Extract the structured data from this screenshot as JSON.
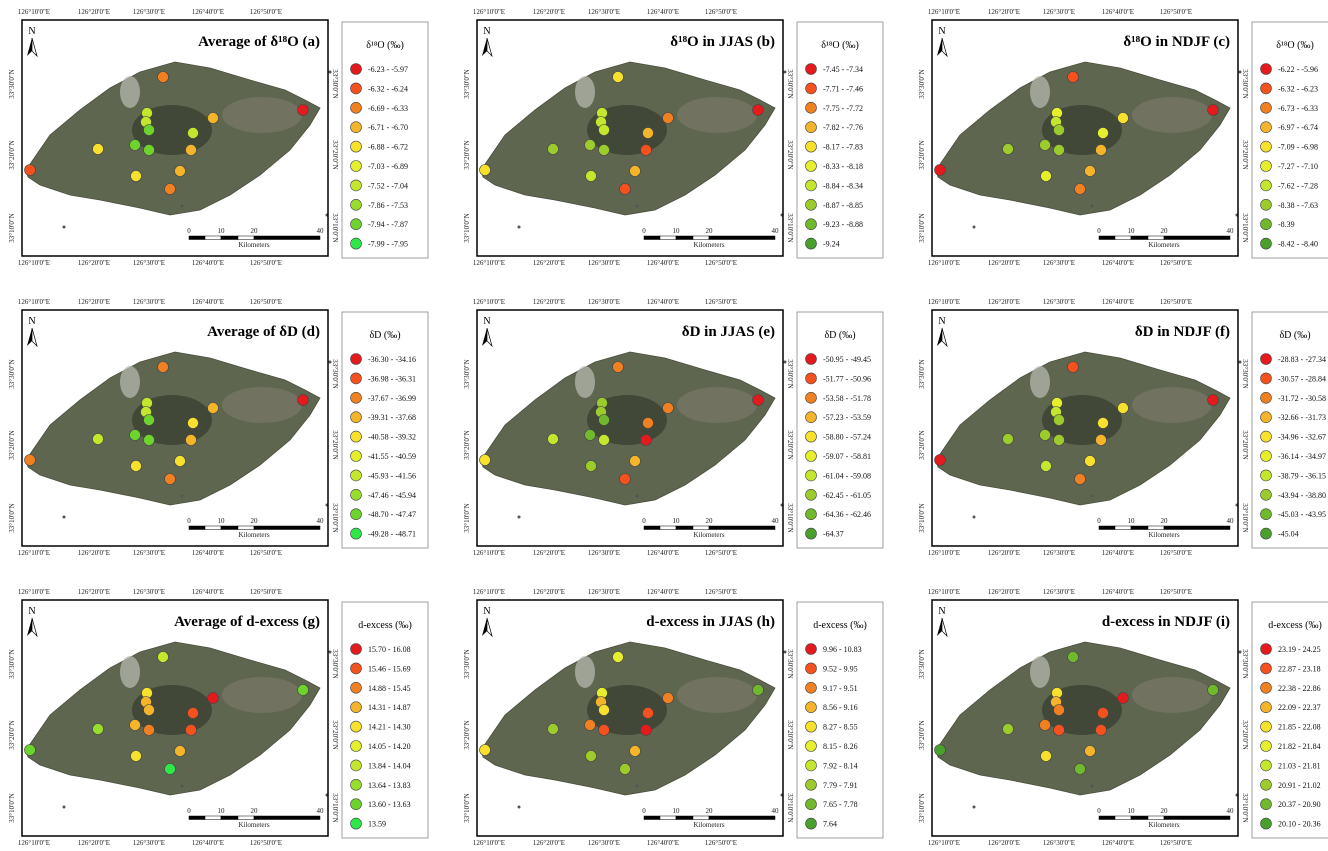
{
  "coordinates": {
    "lon": [
      "126°10'0\"E",
      "126°20'0\"E",
      "126°30'0\"E",
      "126°40'0\"E",
      "126°50'0\"E"
    ],
    "lat": [
      "33°30'0\"N",
      "33°20'0\"N",
      "33°10'0\"N"
    ]
  },
  "north": "N",
  "scale_bar": {
    "ticks": [
      "0",
      "10",
      "20",
      "40"
    ],
    "unit": "Kilometers"
  },
  "panels": [
    {
      "title": "Average of δ¹⁸O (a)",
      "legend_title": "δ¹⁸O (‰)",
      "legend": [
        "-6.23 - -5.97",
        "-6.32 - -6.24",
        "-6.69 - -6.33",
        "-6.71 - -6.70",
        "-6.88 - -6.72",
        "-7.03 - -6.89",
        "-7.52 - -7.04",
        "-7.86 - -7.53",
        "-7.94 - -7.87",
        "-7.99 - -7.95"
      ],
      "colors": [
        "#e41a1c",
        "#f4511e",
        "#f08020",
        "#f5b52a",
        "#f7e12c",
        "#e6ef2c",
        "#c4e62c",
        "#98dc2c",
        "#6cd42c",
        "#2ee84a"
      ]
    },
    {
      "title": "δ¹⁸O in JJAS (b)",
      "legend_title": "δ¹⁸O (‰)",
      "legend": [
        "-7.45 - -7.34",
        "-7.71 - -7.46",
        "-7.75 - -7.72",
        "-7.82 - -7.76",
        "-8.17 - -7.83",
        "-8.33 - -8.18",
        "-8.84 - -8.34",
        "-8.87 - -8.85",
        "-9.23 - -8.88",
        "-9.24"
      ],
      "colors": [
        "#e41a1c",
        "#f4511e",
        "#f08020",
        "#f5b52a",
        "#f7e12c",
        "#e6ef2c",
        "#c4e62c",
        "#9ccc2c",
        "#70b82c",
        "#4aa02c"
      ]
    },
    {
      "title": "δ¹⁸O in NDJF (c)",
      "legend_title": "δ¹⁸O (‰)",
      "legend": [
        "-6.22 - -5.96",
        "-6.32 - -6.23",
        "-6.73 - -6.33",
        "-6.97 - -6.74",
        "-7.09 - -6.98",
        "-7.27 - -7.10",
        "-7.62 - -7.28",
        "-8.38 - -7.63",
        "-8.39",
        "-8.42 - -8.40"
      ],
      "colors": [
        "#e41a1c",
        "#f4511e",
        "#f08020",
        "#f5b52a",
        "#f7e12c",
        "#e6ef2c",
        "#c4e62c",
        "#9ccc2c",
        "#70b82c",
        "#4aa02c"
      ]
    },
    {
      "title": "Average of δD (d)",
      "legend_title": "δD (‰)",
      "legend": [
        "-36.30 - -34.16",
        "-36.98 - -36.31",
        "-37.67 - -36.99",
        "-39.31 - -37.68",
        "-40.58 - -39.32",
        "-41.55 - -40.59",
        "-45.93 - -41.56",
        "-47.46 - -45.94",
        "-48.70 - -47.47",
        "-49.28 - -48.71"
      ],
      "colors": [
        "#e41a1c",
        "#f4511e",
        "#f08020",
        "#f5b52a",
        "#f7e12c",
        "#e6ef2c",
        "#c4e62c",
        "#98dc2c",
        "#6cd42c",
        "#2ee84a"
      ]
    },
    {
      "title": "δD in JJAS (e)",
      "legend_title": "δD (‰)",
      "legend": [
        "-50.95 - -49.45",
        "-51.77 - -50.96",
        "-53.58 - -51.78",
        "-57.23 - -53.59",
        "-58.80 - -57.24",
        "-59.07 - -58.81",
        "-61.04 - -59.08",
        "-62.45 - -61.05",
        "-64.36 - -62.46",
        "-64.37"
      ],
      "colors": [
        "#e41a1c",
        "#f4511e",
        "#f08020",
        "#f5b52a",
        "#f7e12c",
        "#e6ef2c",
        "#c4e62c",
        "#9ccc2c",
        "#70b82c",
        "#4aa02c"
      ]
    },
    {
      "title": "δD in NDJF (f)",
      "legend_title": "δD (‰)",
      "legend": [
        "-28.83 - -27.34",
        "-30.57 - -28.84",
        "-31.72 - -30.58",
        "-32.66 - -31.73",
        "-34.96 - -32.67",
        "-36.14 - -34.97",
        "-38.79 - -36.15",
        "-43.94 - -38.80",
        "-45.03 - -43.95",
        "-45.04"
      ],
      "colors": [
        "#e41a1c",
        "#f4511e",
        "#f08020",
        "#f5b52a",
        "#f7e12c",
        "#e6ef2c",
        "#c4e62c",
        "#9ccc2c",
        "#70b82c",
        "#4aa02c"
      ]
    },
    {
      "title": "Average of d-excess (g)",
      "legend_title": "d-excess (‰)",
      "legend": [
        "15.70 - 16.08",
        "15.46 - 15.69",
        "14.88 - 15.45",
        "14.31 - 14.87",
        "14.21 - 14.30",
        "14.05 - 14.20",
        "13.84 - 14.04",
        "13.64 - 13.83",
        "13.60 - 13.63",
        "13.59"
      ],
      "colors": [
        "#e41a1c",
        "#f4511e",
        "#f08020",
        "#f5b52a",
        "#f7e12c",
        "#e6ef2c",
        "#c4e62c",
        "#98dc2c",
        "#6cd42c",
        "#2ee84a"
      ]
    },
    {
      "title": "d-excess in JJAS (h)",
      "legend_title": "d-excess (‰)",
      "legend": [
        "9.96 - 10.83",
        "9.52 - 9.95",
        "9.17 - 9.51",
        "8.56 - 9.16",
        "8.27 - 8.55",
        "8.15 - 8.26",
        "7.92 - 8.14",
        "7.79 - 7.91",
        "7.65 - 7.78",
        "7.64"
      ],
      "colors": [
        "#e41a1c",
        "#f4511e",
        "#f08020",
        "#f5b52a",
        "#f7e12c",
        "#e6ef2c",
        "#c4e62c",
        "#9ccc2c",
        "#70b82c",
        "#4aa02c"
      ]
    },
    {
      "title": "d-excess in NDJF (i)",
      "legend_title": "d-excess (‰)",
      "legend": [
        "23.19 - 24.25",
        "22.87 - 23.18",
        "22.38 - 22.86",
        "22.09 - 22.37",
        "21.85 - 22.08",
        "21.82 - 21.84",
        "21.03 - 21.81",
        "20.91 - 21.02",
        "20.37 - 20.90",
        "20.10 - 20.36"
      ],
      "colors": [
        "#e41a1c",
        "#f4511e",
        "#f08020",
        "#f5b52a",
        "#f7e12c",
        "#e6ef2c",
        "#c4e62c",
        "#9ccc2c",
        "#70b82c",
        "#4aa02c"
      ]
    }
  ]
}
